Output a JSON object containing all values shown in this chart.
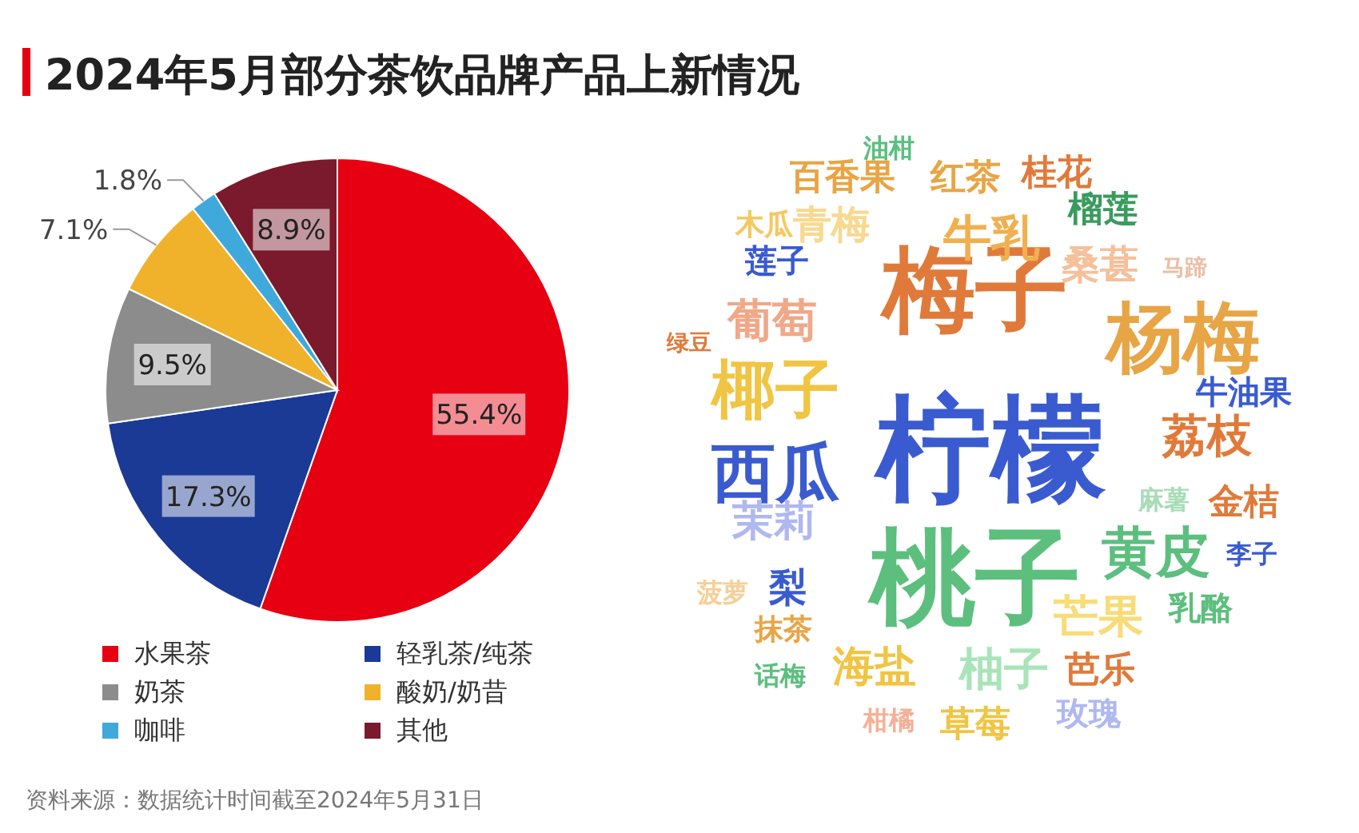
{
  "chart_data": [
    {
      "type": "pie",
      "title": "2024年5月部分茶饮品牌产品上新情况",
      "categories": [
        "水果茶",
        "轻乳茶/纯茶",
        "奶茶",
        "酸奶/奶昔",
        "咖啡",
        "其他"
      ],
      "values": [
        55.4,
        17.3,
        9.5,
        7.1,
        1.8,
        8.9
      ],
      "colors": [
        "#e60012",
        "#1b3a95",
        "#8c8c8c",
        "#efb22a",
        "#3fa9dc",
        "#7a1a2c"
      ],
      "value_labels": [
        "55.4%",
        "17.3%",
        "9.5%",
        "7.1%",
        "1.8%",
        "8.9%"
      ],
      "legend": "bottom",
      "annotations": [
        "资料来源：数据统计时间截至2024年5月31日"
      ]
    },
    {
      "type": "other",
      "annotations": [
        "梅子",
        "杨梅",
        "柠檬",
        "桃子",
        "椰子",
        "西瓜",
        "葡萄",
        "牛乳",
        "青梅",
        "木瓜",
        "百香果",
        "油柑",
        "红茶",
        "桂花",
        "榴莲",
        "桑葚",
        "马蹄",
        "莲子",
        "绿豆",
        "牛油果",
        "荔枝",
        "麻薯",
        "金桔",
        "黄皮",
        "李子",
        "茉莉",
        "梨",
        "菠萝",
        "抹茶",
        "话梅",
        "芒果",
        "乳酪",
        "海盐",
        "柚子",
        "芭乐",
        "柑橘",
        "草莓",
        "玫瑰"
      ]
    }
  ]
}
